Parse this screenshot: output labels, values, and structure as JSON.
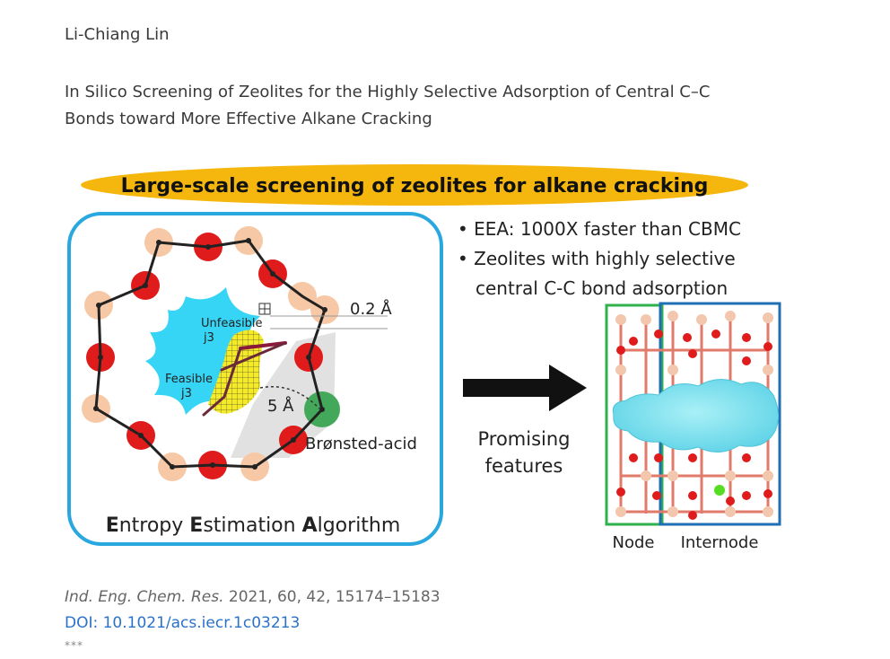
{
  "post": {
    "author": "Li-Chiang Lin",
    "title_line1": "In Silico Screening of Zeolites for the Highly Selective Adsorption of Central C–C",
    "title_line2": "Bonds toward More Effective Alkane Cracking",
    "citation_journal": "Ind. Eng. Chem. Res.",
    "citation_details": " 2021, 60, 42, 15174–15183",
    "doi": "DOI: 10.1021/acs.iecr.1c03213",
    "separator": "***"
  },
  "figure": {
    "banner": "Large-scale screening of zeolites for alkane cracking",
    "bullet1": "• EEA: 1000X faster than CBMC",
    "bullet2": "• Zeolites with highly selective",
    "bullet2b": "central C-C bond adsorption",
    "dist_small": "0.2 Å",
    "dist_large": "5 Å",
    "unfeasible": "Unfeasible",
    "unfeasible_j": "j3",
    "feasible": "Feasible",
    "feasible_j": "j3",
    "acid": "Brønsted-acid",
    "eea_E1": "E",
    "eea_rest1": "ntropy ",
    "eea_E2": "E",
    "eea_rest2": "stimation ",
    "eea_A": "A",
    "eea_rest3": "lgorithm",
    "promising1": "Promising",
    "promising2": "features",
    "node": "Node",
    "internode": "Internode",
    "colors": {
      "banner": "#f5b60d",
      "frame": "#29a8e0",
      "oxygen": "#e01b1b",
      "silicon": "#f7c8a6",
      "acid_site": "#44a85a",
      "pore": "#37d5f5",
      "grid": "#f4ea2a",
      "node_box": "#2fb24c",
      "internode_box": "#1f6fb5"
    }
  }
}
